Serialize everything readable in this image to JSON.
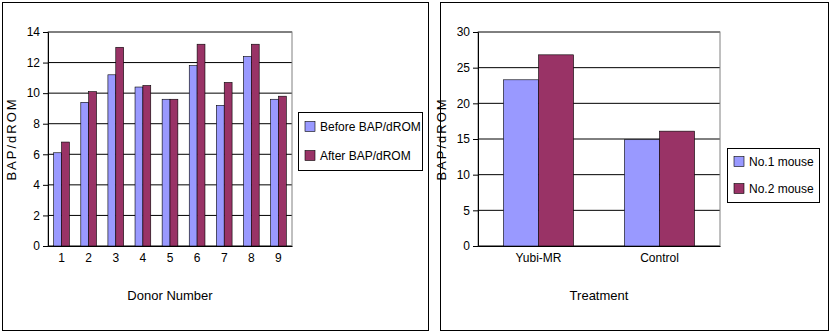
{
  "chart_data": [
    {
      "type": "bar",
      "x_label": "Donor Number",
      "y_label": "BAP/dROM",
      "categories": [
        "1",
        "2",
        "3",
        "4",
        "5",
        "6",
        "7",
        "8",
        "9"
      ],
      "series": [
        {
          "name": "Before BAP/dROM",
          "color": "#9999ff",
          "values": [
            6.1,
            9.4,
            11.2,
            10.4,
            9.6,
            11.8,
            9.2,
            12.4,
            9.6
          ]
        },
        {
          "name": "After BAP/dROM",
          "color": "#993366",
          "values": [
            6.8,
            10.1,
            13.0,
            10.5,
            9.6,
            13.2,
            10.7,
            13.2,
            9.8
          ]
        }
      ],
      "ylim": [
        0,
        14
      ],
      "yticks": [
        0,
        2,
        4,
        6,
        8,
        10,
        12,
        14
      ],
      "grid": true,
      "legend": "right"
    },
    {
      "type": "bar",
      "x_label": "Treatment",
      "y_label": "BAP/dROM",
      "categories": [
        "Yubi-MR",
        "Control"
      ],
      "series": [
        {
          "name": "No.1 mouse",
          "color": "#9999ff",
          "values": [
            23.3,
            14.9
          ]
        },
        {
          "name": "No.2 mouse",
          "color": "#993366",
          "values": [
            26.8,
            16.1
          ]
        }
      ],
      "ylim": [
        0,
        30
      ],
      "yticks": [
        0,
        5,
        10,
        15,
        20,
        25,
        30
      ],
      "grid": true,
      "legend": "right"
    }
  ]
}
